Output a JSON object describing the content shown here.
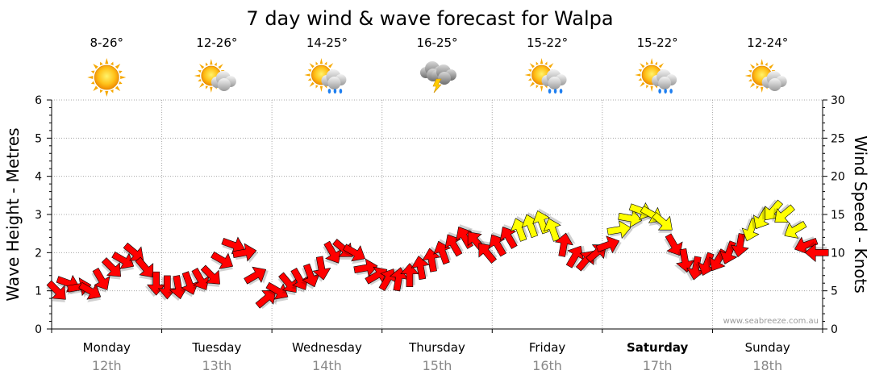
{
  "chart_data": {
    "type": "line",
    "title": "7 day wind & wave forecast for Walpa",
    "ylabel_left": "Wave Height - Metres",
    "ylabel_right": "Wind Speed - Knots",
    "ylim_left": [
      0,
      6
    ],
    "ylim_right": [
      0,
      30
    ],
    "yticks_left": [
      "0",
      "1",
      "2",
      "3",
      "4",
      "5",
      "6"
    ],
    "yticks_right": [
      "0",
      "5",
      "10",
      "15",
      "20",
      "25",
      "30"
    ],
    "watermark": "www.seabreeze.com.au",
    "days": [
      {
        "name": "Monday",
        "date": "12th",
        "temp": "8-26°",
        "weather": "sunny",
        "bold": false
      },
      {
        "name": "Tuesday",
        "date": "13th",
        "temp": "12-26°",
        "weather": "partly-cloudy",
        "bold": false
      },
      {
        "name": "Wednesday",
        "date": "14th",
        "temp": "14-25°",
        "weather": "showers",
        "bold": false
      },
      {
        "name": "Thursday",
        "date": "15th",
        "temp": "16-25°",
        "weather": "storm",
        "bold": false
      },
      {
        "name": "Friday",
        "date": "16th",
        "temp": "15-22°",
        "weather": "showers",
        "bold": false
      },
      {
        "name": "Saturday",
        "date": "17th",
        "temp": "15-22°",
        "weather": "showers",
        "bold": true
      },
      {
        "name": "Sunday",
        "date": "18th",
        "temp": "12-24°",
        "weather": "partly-cloudy",
        "bold": false
      }
    ],
    "series": [
      {
        "name": "Wind (knots, arrows)",
        "x_days": [
          0.05,
          0.15,
          0.25,
          0.35,
          0.45,
          0.55,
          0.65,
          0.75,
          0.85,
          0.95,
          1.05,
          1.15,
          1.25,
          1.35,
          1.45,
          1.55,
          1.65,
          1.75,
          1.85,
          1.95,
          2.05,
          2.15,
          2.25,
          2.35,
          2.45,
          2.55,
          2.65,
          2.75,
          2.85,
          2.95,
          3.05,
          3.15,
          3.25,
          3.35,
          3.45,
          3.55,
          3.65,
          3.75,
          3.85,
          3.95,
          4.05,
          4.15,
          4.25,
          4.35,
          4.45,
          4.55,
          4.65,
          4.75,
          4.85,
          4.95,
          5.05,
          5.15,
          5.25,
          5.35,
          5.45,
          5.55,
          5.65,
          5.75,
          5.85,
          5.95,
          6.05,
          6.15,
          6.25,
          6.35,
          6.45,
          6.55,
          6.65,
          6.75,
          6.85,
          6.95
        ],
        "values": [
          5,
          6,
          5.5,
          5,
          6.5,
          8,
          9,
          10,
          8,
          6,
          5.5,
          5.5,
          6,
          6.5,
          7,
          9,
          11,
          10,
          7,
          4,
          5,
          6,
          6.5,
          7,
          8,
          10,
          10.5,
          10,
          8,
          7,
          6.5,
          6.5,
          7,
          8,
          9,
          10,
          11,
          12,
          11.5,
          10,
          11,
          12,
          13,
          13.5,
          14,
          13,
          11,
          9.5,
          9,
          10,
          11,
          13,
          14.5,
          15.5,
          15,
          14,
          11,
          9,
          8,
          8.5,
          9,
          10,
          11,
          13,
          14.5,
          15.5,
          15,
          13,
          11,
          10
        ],
        "direction_deg": [
          45,
          20,
          350,
          30,
          60,
          45,
          30,
          40,
          50,
          90,
          90,
          80,
          70,
          60,
          45,
          30,
          20,
          350,
          330,
          320,
          30,
          50,
          60,
          70,
          80,
          60,
          40,
          30,
          350,
          330,
          300,
          280,
          270,
          260,
          260,
          250,
          240,
          240,
          230,
          230,
          240,
          240,
          250,
          250,
          250,
          250,
          280,
          300,
          310,
          320,
          340,
          350,
          10,
          20,
          30,
          40,
          60,
          80,
          100,
          110,
          120,
          110,
          100,
          110,
          120,
          130,
          140,
          150,
          160,
          180
        ],
        "color_by_speed": {
          "below_13_knots": "#ff0000",
          "13_knots_and_above": "#ffff00"
        }
      }
    ]
  }
}
